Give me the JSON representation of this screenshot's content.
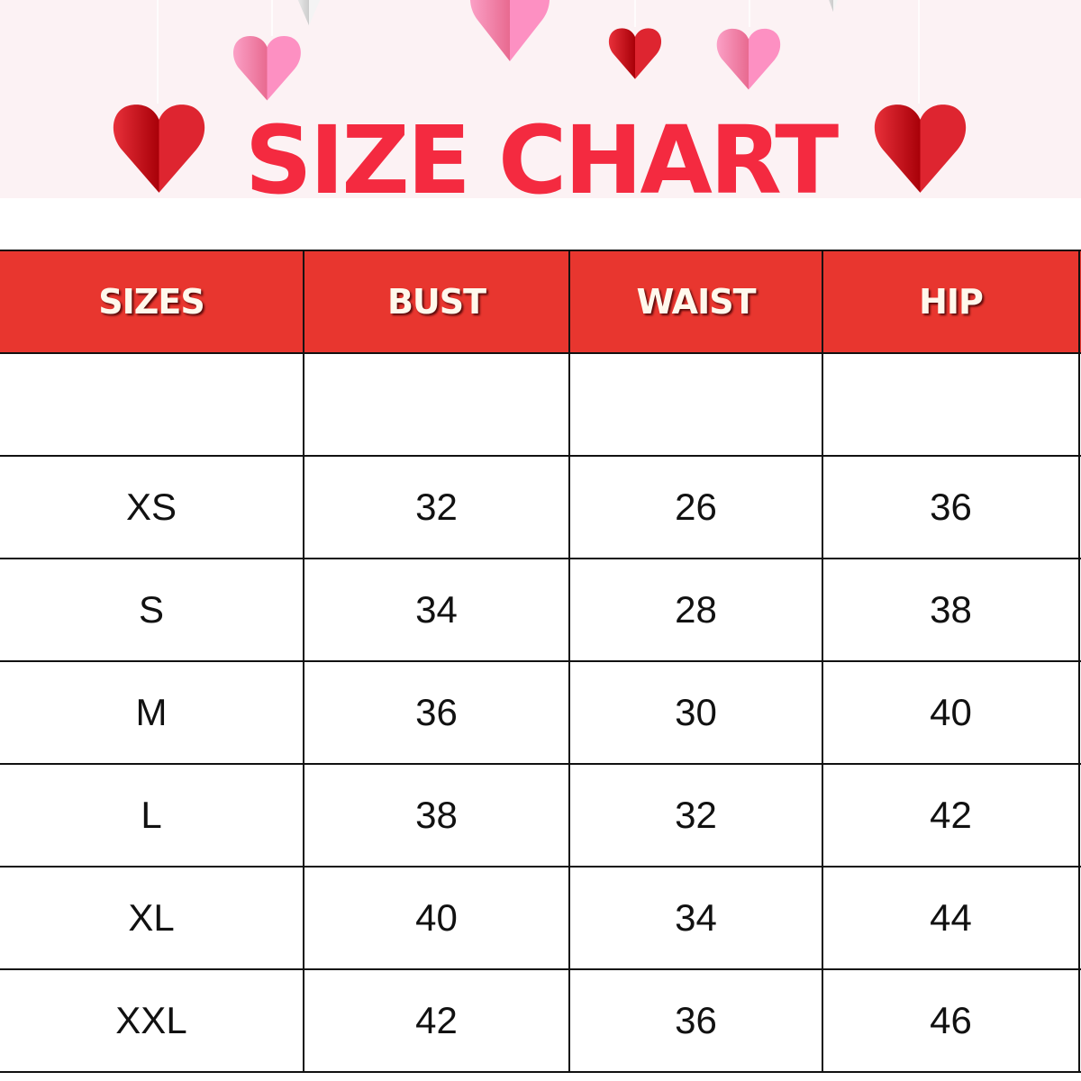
{
  "title": "SIZE CHART",
  "colors": {
    "title": "#f42a40",
    "header_bg": "#e8362f",
    "header_text": "#fff8ec",
    "banner_bg": "#fcf2f4",
    "heart_red": "#de2530",
    "heart_pink": "#fd90c2"
  },
  "table": {
    "headers": [
      "SIZES",
      "BUST",
      "WAIST",
      "HIP"
    ],
    "rows": [
      [
        "",
        "",
        "",
        ""
      ],
      [
        "XS",
        "32",
        "26",
        "36"
      ],
      [
        "S",
        "34",
        "28",
        "38"
      ],
      [
        "M",
        "36",
        "30",
        "40"
      ],
      [
        "L",
        "38",
        "32",
        "42"
      ],
      [
        "XL",
        "40",
        "34",
        "44"
      ],
      [
        "XXL",
        "42",
        "36",
        "46"
      ]
    ]
  }
}
